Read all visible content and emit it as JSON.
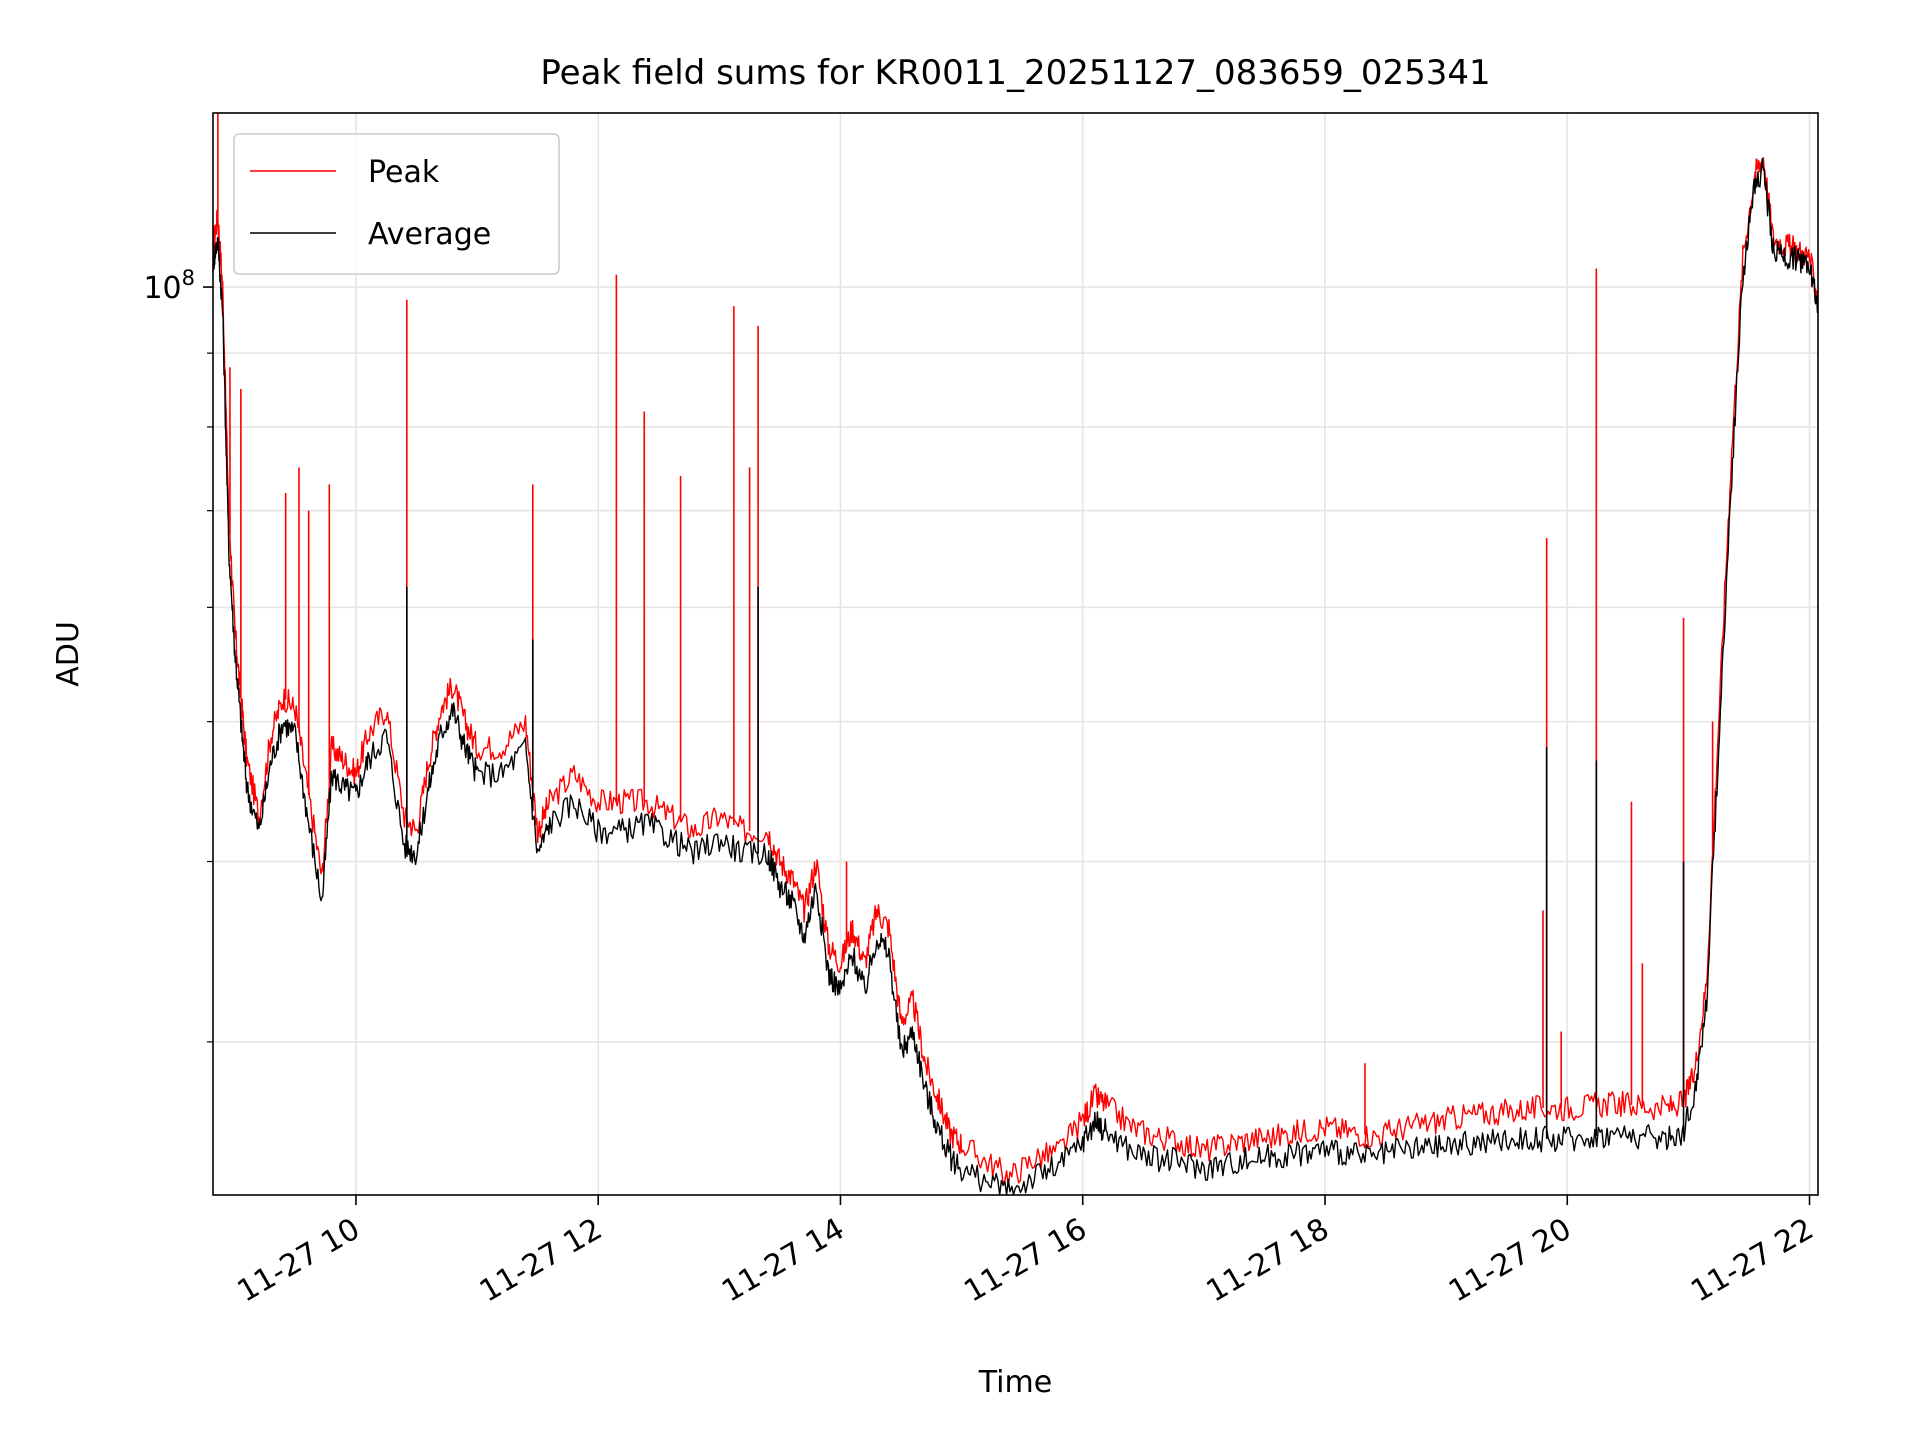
{
  "chart_data": {
    "type": "line",
    "title": "Peak field sums for KR0011_20251127_083659_025341",
    "xlabel": "Time",
    "ylabel": "ADU",
    "yscale": "log",
    "ylim": [
      23500000,
      132000000
    ],
    "xlim_hours": [
      8.82,
      22.07
    ],
    "x_tick_labels": [
      "11-27 10",
      "11-27 12",
      "11-27 14",
      "11-27 16",
      "11-27 18",
      "11-27 20",
      "11-27 22"
    ],
    "x_tick_hours": [
      10,
      12,
      14,
      16,
      18,
      20,
      22
    ],
    "y_major_tick_label_base": "10",
    "y_major_tick_label_exp": "8",
    "y_major_tick_value": 100000000,
    "y_minor_tick_values": [
      30000000,
      40000000,
      50000000,
      60000000,
      70000000,
      80000000,
      90000000
    ],
    "grid": true,
    "legend": {
      "position": "top-left",
      "entries": [
        {
          "label": "Peak",
          "color": "#ff0000"
        },
        {
          "label": "Average",
          "color": "#000000"
        }
      ]
    },
    "series": [
      {
        "name": "Peak",
        "color": "#ff0000",
        "x_hours": [
          8.82,
          8.86,
          8.9,
          8.95,
          9.0,
          9.05,
          9.1,
          9.2,
          9.3,
          9.4,
          9.5,
          9.6,
          9.72,
          9.8,
          9.9,
          10.0,
          10.1,
          10.25,
          10.4,
          10.5,
          10.6,
          10.7,
          10.8,
          10.9,
          11.0,
          11.2,
          11.4,
          11.5,
          11.6,
          11.8,
          12.0,
          12.2,
          12.4,
          12.6,
          12.8,
          13.0,
          13.2,
          13.4,
          13.5,
          13.6,
          13.7,
          13.8,
          13.9,
          14.0,
          14.1,
          14.2,
          14.3,
          14.4,
          14.5,
          14.6,
          14.7,
          14.8,
          14.9,
          15.0,
          15.2,
          15.4,
          15.6,
          15.8,
          16.0,
          16.1,
          16.2,
          16.4,
          16.6,
          16.8,
          17.0,
          17.2,
          17.4,
          17.6,
          17.8,
          18.0,
          18.2,
          18.4,
          18.6,
          18.8,
          19.0,
          19.2,
          19.4,
          19.6,
          19.8,
          20.0,
          20.2,
          20.4,
          20.6,
          20.8,
          20.95,
          21.05,
          21.15,
          21.25,
          21.35,
          21.45,
          21.55,
          21.62,
          21.7,
          21.8,
          21.9,
          22.0,
          22.07
        ],
        "y": [
          107000000,
          112000000,
          100000000,
          70000000,
          58000000,
          52000000,
          47000000,
          43000000,
          49000000,
          52000000,
          51000000,
          45000000,
          39000000,
          48000000,
          47000000,
          46000000,
          49000000,
          51000000,
          43000000,
          42000000,
          47000000,
          51000000,
          53000000,
          50000000,
          48000000,
          48000000,
          50000000,
          42000000,
          44000000,
          46000000,
          44000000,
          44000000,
          44000000,
          43000000,
          42000000,
          43000000,
          42000000,
          42000000,
          40000000,
          39000000,
          37000000,
          40000000,
          35000000,
          34000000,
          36000000,
          34000000,
          37000000,
          36000000,
          31000000,
          32000000,
          29000000,
          27500000,
          26000000,
          25500000,
          24800000,
          24200000,
          24900000,
          25200000,
          26500000,
          27500000,
          27100000,
          26200000,
          25800000,
          25600000,
          25200000,
          25500000,
          25700000,
          25800000,
          26000000,
          26200000,
          26000000,
          25800000,
          26100000,
          26300000,
          26500000,
          26700000,
          26800000,
          26900000,
          27000000,
          27000000,
          27100000,
          27200000,
          27100000,
          27000000,
          27200000,
          28500000,
          33000000,
          50000000,
          75000000,
          105000000,
          120000000,
          123000000,
          108000000,
          107000000,
          106000000,
          105000000,
          98000000
        ]
      },
      {
        "name": "Average",
        "color": "#000000",
        "x_hours": [
          8.82,
          8.86,
          8.9,
          8.95,
          9.0,
          9.05,
          9.1,
          9.2,
          9.3,
          9.4,
          9.5,
          9.6,
          9.72,
          9.8,
          9.9,
          10.0,
          10.1,
          10.25,
          10.4,
          10.5,
          10.6,
          10.7,
          10.8,
          10.9,
          11.0,
          11.2,
          11.4,
          11.5,
          11.6,
          11.8,
          12.0,
          12.2,
          12.4,
          12.6,
          12.8,
          13.0,
          13.2,
          13.4,
          13.5,
          13.6,
          13.7,
          13.8,
          13.9,
          14.0,
          14.1,
          14.2,
          14.3,
          14.4,
          14.5,
          14.6,
          14.7,
          14.8,
          14.9,
          15.0,
          15.2,
          15.4,
          15.6,
          15.8,
          16.0,
          16.1,
          16.2,
          16.4,
          16.6,
          16.8,
          17.0,
          17.2,
          17.4,
          17.6,
          17.8,
          18.0,
          18.2,
          18.4,
          18.6,
          18.8,
          19.0,
          19.2,
          19.4,
          19.6,
          19.8,
          20.0,
          20.2,
          20.4,
          20.6,
          20.8,
          20.95,
          21.05,
          21.15,
          21.25,
          21.35,
          21.45,
          21.55,
          21.62,
          21.7,
          21.8,
          21.9,
          22.0,
          22.07
        ],
        "y": [
          104000000,
          108000000,
          96000000,
          66000000,
          56000000,
          50000000,
          45000000,
          42000000,
          47000000,
          50000000,
          49000000,
          43000000,
          37500000,
          46000000,
          45000000,
          44500000,
          47000000,
          49000000,
          41000000,
          40500000,
          45000000,
          49000000,
          51000000,
          48000000,
          46000000,
          46000000,
          48000000,
          40500000,
          42500000,
          44000000,
          42000000,
          42000000,
          42500000,
          41500000,
          40500000,
          41500000,
          40500000,
          40500000,
          38500000,
          37500000,
          35500000,
          38500000,
          33500000,
          32500000,
          34500000,
          32500000,
          35500000,
          34500000,
          29500000,
          30500000,
          27800000,
          26200000,
          25000000,
          24500000,
          24000000,
          23600000,
          24200000,
          24600000,
          25600000,
          26400000,
          26000000,
          25200000,
          24900000,
          24800000,
          24500000,
          24700000,
          24900000,
          25000000,
          25100000,
          25300000,
          25100000,
          24900000,
          25200000,
          25300000,
          25400000,
          25500000,
          25600000,
          25700000,
          25700000,
          25700000,
          25800000,
          25900000,
          25800000,
          25700000,
          25900000,
          27500000,
          32000000,
          48000000,
          72000000,
          102000000,
          118000000,
          121000000,
          106000000,
          105000000,
          104500000,
          104000000,
          97000000
        ]
      }
    ],
    "peak_spikes": [
      {
        "x_hours": 8.86,
        "y": 133000000
      },
      {
        "x_hours": 8.96,
        "y": 88000000
      },
      {
        "x_hours": 9.05,
        "y": 85000000
      },
      {
        "x_hours": 9.42,
        "y": 72000000
      },
      {
        "x_hours": 9.53,
        "y": 75000000
      },
      {
        "x_hours": 9.61,
        "y": 70000000
      },
      {
        "x_hours": 9.78,
        "y": 73000000
      },
      {
        "x_hours": 10.42,
        "y": 98000000
      },
      {
        "x_hours": 11.46,
        "y": 73000000
      },
      {
        "x_hours": 12.15,
        "y": 102000000
      },
      {
        "x_hours": 12.38,
        "y": 82000000
      },
      {
        "x_hours": 12.68,
        "y": 74000000
      },
      {
        "x_hours": 13.12,
        "y": 97000000
      },
      {
        "x_hours": 13.25,
        "y": 75000000
      },
      {
        "x_hours": 13.32,
        "y": 94000000
      },
      {
        "x_hours": 14.05,
        "y": 40000000
      },
      {
        "x_hours": 18.33,
        "y": 29000000
      },
      {
        "x_hours": 19.8,
        "y": 37000000
      },
      {
        "x_hours": 19.83,
        "y": 67000000
      },
      {
        "x_hours": 19.95,
        "y": 30500000
      },
      {
        "x_hours": 20.24,
        "y": 103000000
      },
      {
        "x_hours": 20.53,
        "y": 44000000
      },
      {
        "x_hours": 20.62,
        "y": 34000000
      },
      {
        "x_hours": 20.96,
        "y": 59000000
      },
      {
        "x_hours": 21.2,
        "y": 50000000
      }
    ],
    "average_spikes": [
      {
        "x_hours": 10.42,
        "y": 62000000
      },
      {
        "x_hours": 11.46,
        "y": 57000000
      },
      {
        "x_hours": 13.32,
        "y": 62000000
      },
      {
        "x_hours": 19.83,
        "y": 48000000
      },
      {
        "x_hours": 20.24,
        "y": 47000000
      },
      {
        "x_hours": 20.96,
        "y": 40000000
      }
    ]
  }
}
